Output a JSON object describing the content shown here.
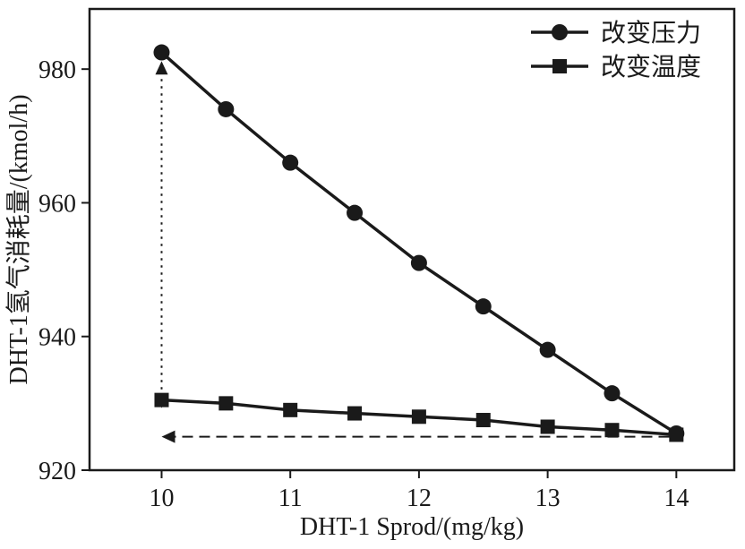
{
  "chart_data": {
    "type": "line",
    "title": "",
    "xlabel": "DHT-1 Sprod/(mg/kg)",
    "ylabel": "DHT-1氢气消耗量/(kmol/h)",
    "xlim": [
      9.44,
      14.45
    ],
    "ylim": [
      920,
      989
    ],
    "xticks": [
      "10",
      "11",
      "12",
      "13",
      "14"
    ],
    "xtick_values": [
      10,
      11,
      12,
      13,
      14
    ],
    "yticks": [
      "920",
      "940",
      "960",
      "980"
    ],
    "ytick_values": [
      920,
      940,
      960,
      980
    ],
    "x": [
      10,
      10.5,
      11,
      11.5,
      12,
      12.5,
      13,
      13.5,
      14
    ],
    "series": [
      {
        "name": "改变压力",
        "marker": "circle",
        "values": [
          982.5,
          974.0,
          966.0,
          958.5,
          951.0,
          944.5,
          938.0,
          931.5,
          925.5
        ]
      },
      {
        "name": "改变温度",
        "marker": "square",
        "values": [
          930.5,
          930.0,
          929.0,
          928.5,
          928.0,
          927.5,
          926.5,
          926.0,
          925.3
        ]
      }
    ],
    "legend": {
      "position": "top-right"
    },
    "grid": false,
    "color": "#1a1a1a",
    "annotations": [
      {
        "type": "vline",
        "style": "dotted",
        "x": 10,
        "y1": 929.3,
        "y2": 981.2,
        "arrow_start": "down",
        "arrow_end": "up"
      },
      {
        "type": "hline",
        "style": "dashed",
        "y": 925,
        "x1": 10,
        "x2": 14,
        "arrow": "left"
      }
    ]
  }
}
